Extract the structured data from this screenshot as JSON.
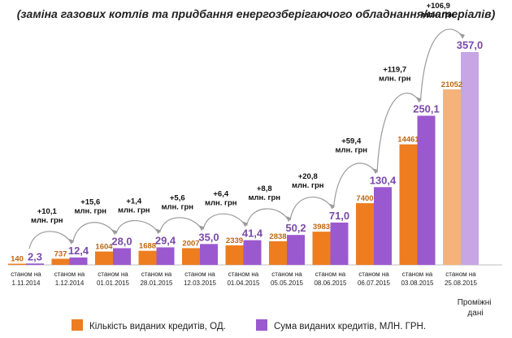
{
  "chart_data": {
    "type": "bar",
    "title": "(заміна газових котлів  та  придбання енергозберігаючого обладнання/матеріалів)",
    "categories": [
      [
        "станом на",
        "1.11.2014"
      ],
      [
        "станом на",
        "1.12.2014"
      ],
      [
        "станом на",
        "01.01.2015"
      ],
      [
        "станом на",
        "28.01.2015"
      ],
      [
        "станом на",
        "12.03.2015"
      ],
      [
        "станом на",
        "01.04.2015"
      ],
      [
        "станом на",
        "05.05.2015"
      ],
      [
        "станом на",
        "08.06.2015"
      ],
      [
        "станом на",
        "06.07.2015"
      ],
      [
        "станом на",
        "03.08.2015"
      ],
      [
        "станом на",
        "25.08.2015"
      ]
    ],
    "series": [
      {
        "name": "Кількість виданих кредитів, ОД.",
        "color": "#ed7d1f",
        "values": [
          140,
          737,
          1604,
          1688,
          2007,
          2339,
          2838,
          3983,
          7400,
          14461,
          21052
        ],
        "labels": [
          "140",
          "737",
          "1604",
          "1688",
          "2007",
          "2339",
          "2838",
          "3983",
          "7400",
          "14461",
          "21052"
        ]
      },
      {
        "name": "Сума виданих кредитів, МЛН. ГРН.",
        "color": "#9b59cf",
        "values": [
          2.3,
          12.4,
          28.0,
          29.4,
          35.0,
          41.4,
          50.2,
          71.0,
          130.4,
          250.1,
          357.0
        ],
        "labels": [
          "2,3",
          "12,4",
          "28,0",
          "29,4",
          "35,0",
          "41,4",
          "50,2",
          "71,0",
          "130,4",
          "250,1",
          "357,0"
        ]
      }
    ],
    "deltas": [
      [
        "+10,1",
        "млн. грн"
      ],
      [
        "+15,6",
        "млн. грн"
      ],
      [
        "+1,4",
        "млн. грн"
      ],
      [
        "+5,6",
        "млн. грн"
      ],
      [
        "+6,4",
        "млн. грн"
      ],
      [
        "+8,8",
        "млн. грн"
      ],
      [
        "+20,8",
        "млн. грн"
      ],
      [
        "+59,4",
        "млн. грн"
      ],
      [
        "+119,7",
        "млн. грн"
      ],
      [
        "+106,9",
        "млн. грн"
      ]
    ],
    "preliminary_note": [
      "Проміжні",
      "дані"
    ],
    "preliminary_colors": {
      "count": "#f5b27a",
      "sum": "#c6a6e4"
    },
    "ylim_sum": [
      0,
      357
    ],
    "ylim_count": [
      0,
      21052
    ]
  }
}
